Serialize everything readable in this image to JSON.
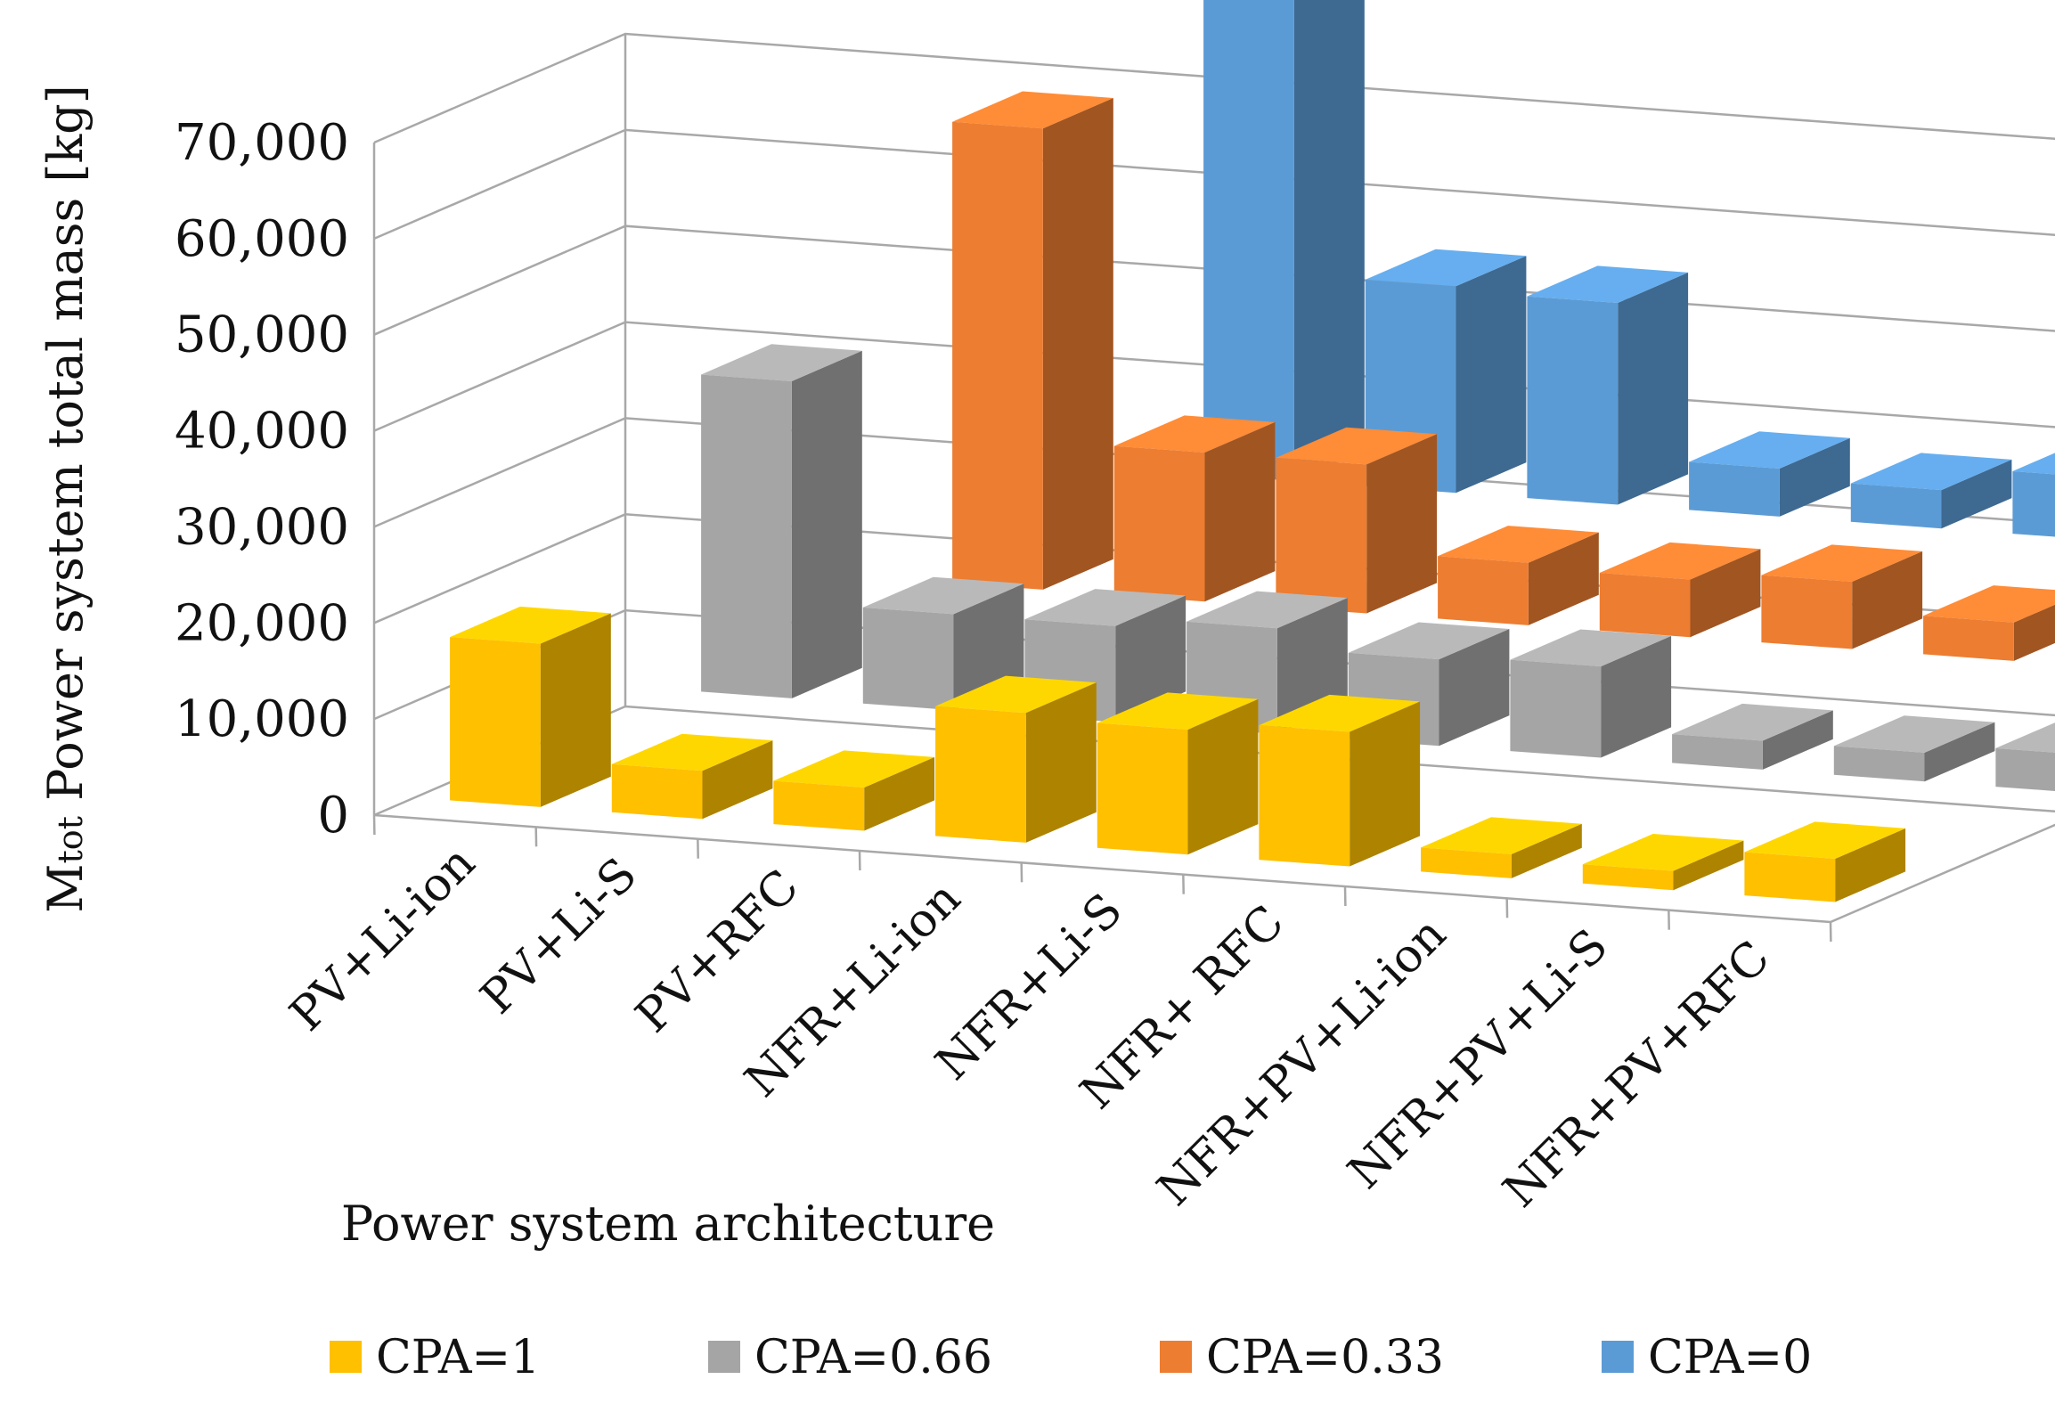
{
  "chart_data": {
    "type": "bar",
    "subtype": "3d-clustered-column",
    "title": "",
    "xlabel": "Power system architecture",
    "ylabel_prefix": "M",
    "ylabel_subscript": "tot",
    "ylabel_rest": " Power system total mass [kg]",
    "ylim": [
      0,
      70000
    ],
    "yticks": [
      "0",
      "10,000",
      "20,000",
      "30,000",
      "40,000",
      "50,000",
      "60,000",
      "70,000"
    ],
    "grid": true,
    "legend_position": "bottom",
    "categories": [
      "PV+Li-ion",
      "PV+Li-S",
      "PV+RFC",
      "NFR+Li-ion",
      "NFR+Li-S",
      "NFR+ RFC",
      "NFR+PV+Li-ion",
      "NFR+PV+Li-S",
      "NFR+PV+RFC"
    ],
    "series": [
      {
        "name": "CPA=1",
        "color": "#FFC000",
        "values": [
          17000,
          5000,
          4500,
          13500,
          13000,
          14000,
          2500,
          2000,
          4500
        ]
      },
      {
        "name": "CPA=0.66",
        "color": "#A5A5A5",
        "values": [
          33000,
          10000,
          10000,
          11000,
          9000,
          9500,
          3000,
          3000,
          4000
        ]
      },
      {
        "name": "CPA=0.33",
        "color": "#ED7D31",
        "values": [
          48000,
          15500,
          15500,
          6500,
          6000,
          7000,
          4000,
          4000,
          4000
        ]
      },
      {
        "name": "CPA=0",
        "color": "#5B9BD5",
        "values": [
          63000,
          21500,
          21000,
          5000,
          4000,
          6500,
          5000,
          5000,
          5500
        ]
      }
    ]
  }
}
